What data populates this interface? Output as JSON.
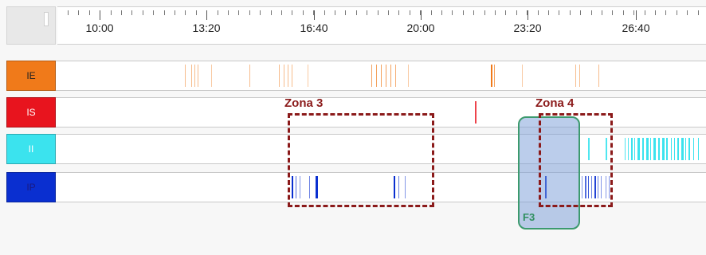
{
  "timeline": {
    "labels": [
      "10:00",
      "13:20",
      "16:40",
      "20:00",
      "23:20",
      "26:40"
    ]
  },
  "tracks": [
    {
      "name": "IE",
      "color": "#f07a1a",
      "text_color": "#222222"
    },
    {
      "name": "IS",
      "color": "#e8141e",
      "text_color": "#ffffff"
    },
    {
      "name": "II",
      "color": "#3be3ee",
      "text_color": "#ffffff"
    },
    {
      "name": "IP",
      "color": "#0a2fd0",
      "text_color": "#1a1a80"
    }
  ],
  "zones": [
    {
      "label": "Zona 3"
    },
    {
      "label": "Zona 4"
    }
  ],
  "selection": {
    "label": "F3"
  }
}
